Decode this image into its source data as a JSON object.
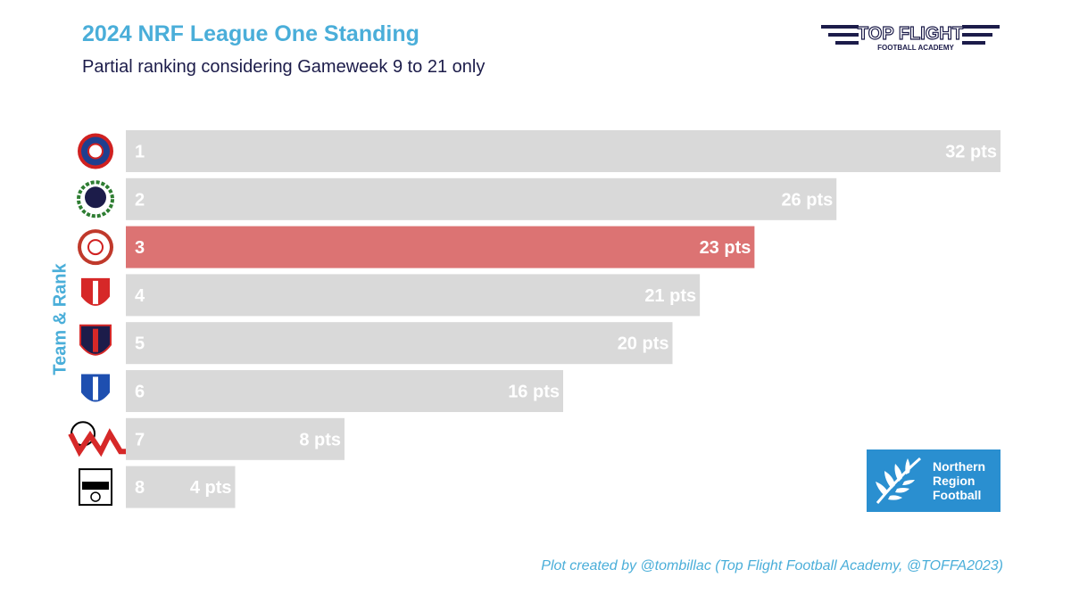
{
  "header": {
    "title": "2024 NRF League One Standing",
    "subtitle": "Partial ranking considering Gameweek 9 to 21 only",
    "brand_logo_name": "top-flight-football-academy-logo",
    "brand_line1": "TOP FLIGHT",
    "brand_line2": "FOOTBALL ACADEMY"
  },
  "nrf_logo": {
    "name": "northern-region-football-logo",
    "line1": "Northern",
    "line2": "Region",
    "line3": "Football",
    "color": "#2a8fd0"
  },
  "caption": "Plot created by @tombillac (Top Flight Football Academy, @TOFFA2023)",
  "colors": {
    "bar_default": "#d9d9d9",
    "bar_highlight": "#dc7373",
    "label_text": "#ffffff",
    "title": "#4aaed9",
    "subtitle": "#1c1c4a"
  },
  "chart_data": {
    "type": "bar",
    "orientation": "horizontal",
    "title": "2024 NRF League One Standing",
    "subtitle": "Partial ranking considering Gameweek 9 to 21 only",
    "ylabel": "Team & Rank",
    "xlabel": "",
    "xlim": [
      0,
      32
    ],
    "grid": false,
    "categories": [
      "1",
      "2",
      "3",
      "4",
      "5",
      "6",
      "7",
      "8"
    ],
    "values": [
      32,
      26,
      23,
      21,
      20,
      16,
      8,
      4
    ],
    "value_labels": [
      "32 pts",
      "26 pts",
      "23 pts",
      "21 pts",
      "20 pts",
      "16 pts",
      "8 pts",
      "4 pts"
    ],
    "highlight_index": 2,
    "team_logos": [
      "central-united-crest-icon",
      "sar-afc-crest-icon",
      "ellerslie-afc-crest-icon",
      "manukau-crest-icon",
      "papakura-city-crest-icon",
      "bay-olympic-crest-icon",
      "west-auckland-crest-icon",
      "mangere-united-crest-icon"
    ]
  }
}
